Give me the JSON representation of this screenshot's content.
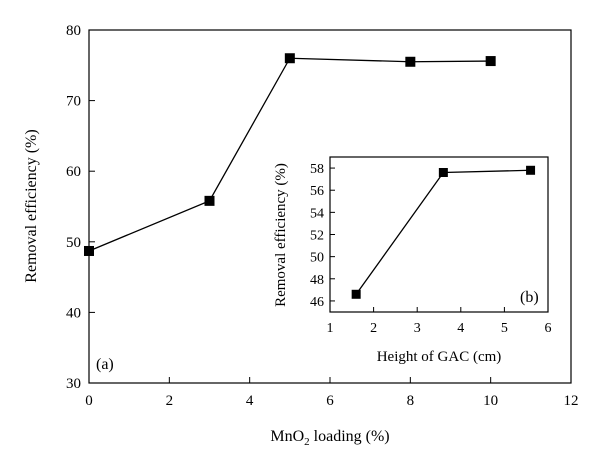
{
  "chart_data": [
    {
      "type": "line",
      "panel_label": "(a)",
      "xlabel": "MnO",
      "xlabel_subscript": "2",
      "xlabel_suffix": " loading (%)",
      "ylabel": "Removal efficiency (%)",
      "xlim": [
        0,
        12
      ],
      "ylim": [
        30,
        80
      ],
      "xticks": [
        0,
        2,
        4,
        6,
        8,
        10,
        12
      ],
      "yticks": [
        30,
        40,
        50,
        60,
        70,
        80
      ],
      "marker": "square",
      "color": "#000000",
      "x": [
        0,
        3,
        5,
        8,
        10
      ],
      "y": [
        48.7,
        55.8,
        76.0,
        75.5,
        75.6
      ]
    },
    {
      "type": "line",
      "panel_label": "(b)",
      "xlabel": "Height of GAC (cm)",
      "ylabel": "Removal efficiency (%)",
      "xlim": [
        1,
        6
      ],
      "ylim": [
        45,
        59
      ],
      "xticks": [
        1,
        2,
        3,
        4,
        5,
        6
      ],
      "yticks": [
        46,
        48,
        50,
        52,
        54,
        56,
        58
      ],
      "marker": "square",
      "color": "#000000",
      "x": [
        1.6,
        3.6,
        5.6
      ],
      "y": [
        46.6,
        57.6,
        57.8
      ]
    }
  ]
}
